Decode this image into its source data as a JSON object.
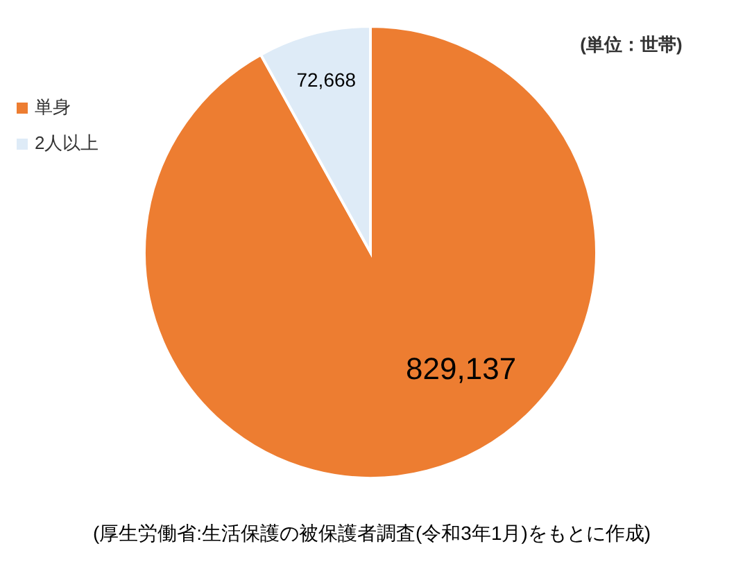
{
  "chart_data": {
    "type": "pie",
    "categories": [
      "単身",
      "2人以上"
    ],
    "values": [
      829137,
      72668
    ],
    "colors": [
      "#ed7d31",
      "#deebf7"
    ],
    "value_labels": [
      "829,137",
      "72,668"
    ],
    "legend": "top left",
    "annotations": [
      "(単位：世帯)",
      "(厚生労働省:生活保護の被保護者調査(令和3年1月)をもとに作成)"
    ]
  }
}
